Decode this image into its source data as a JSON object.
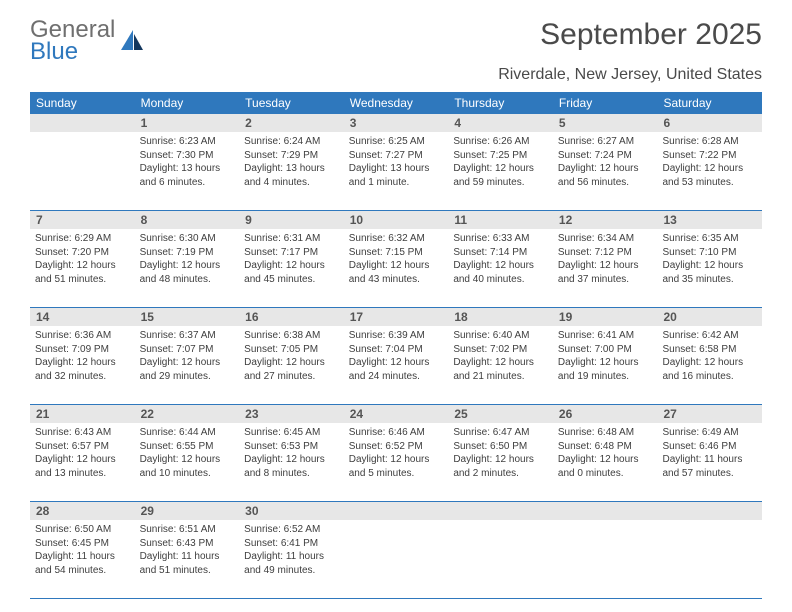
{
  "brand": {
    "part1": "General",
    "part2": "Blue"
  },
  "title": "September 2025",
  "subtitle": "Riverdale, New Jersey, United States",
  "colors": {
    "header_bg": "#2f78bd",
    "daynum_bg": "#e7e7e7",
    "text_main": "#4a4a4a",
    "text_body": "#3e3e3e"
  },
  "day_names": [
    "Sunday",
    "Monday",
    "Tuesday",
    "Wednesday",
    "Thursday",
    "Friday",
    "Saturday"
  ],
  "weeks": [
    [
      {
        "n": "",
        "sunrise": "",
        "sunset": "",
        "daylight": ""
      },
      {
        "n": "1",
        "sunrise": "Sunrise: 6:23 AM",
        "sunset": "Sunset: 7:30 PM",
        "daylight": "Daylight: 13 hours and 6 minutes."
      },
      {
        "n": "2",
        "sunrise": "Sunrise: 6:24 AM",
        "sunset": "Sunset: 7:29 PM",
        "daylight": "Daylight: 13 hours and 4 minutes."
      },
      {
        "n": "3",
        "sunrise": "Sunrise: 6:25 AM",
        "sunset": "Sunset: 7:27 PM",
        "daylight": "Daylight: 13 hours and 1 minute."
      },
      {
        "n": "4",
        "sunrise": "Sunrise: 6:26 AM",
        "sunset": "Sunset: 7:25 PM",
        "daylight": "Daylight: 12 hours and 59 minutes."
      },
      {
        "n": "5",
        "sunrise": "Sunrise: 6:27 AM",
        "sunset": "Sunset: 7:24 PM",
        "daylight": "Daylight: 12 hours and 56 minutes."
      },
      {
        "n": "6",
        "sunrise": "Sunrise: 6:28 AM",
        "sunset": "Sunset: 7:22 PM",
        "daylight": "Daylight: 12 hours and 53 minutes."
      }
    ],
    [
      {
        "n": "7",
        "sunrise": "Sunrise: 6:29 AM",
        "sunset": "Sunset: 7:20 PM",
        "daylight": "Daylight: 12 hours and 51 minutes."
      },
      {
        "n": "8",
        "sunrise": "Sunrise: 6:30 AM",
        "sunset": "Sunset: 7:19 PM",
        "daylight": "Daylight: 12 hours and 48 minutes."
      },
      {
        "n": "9",
        "sunrise": "Sunrise: 6:31 AM",
        "sunset": "Sunset: 7:17 PM",
        "daylight": "Daylight: 12 hours and 45 minutes."
      },
      {
        "n": "10",
        "sunrise": "Sunrise: 6:32 AM",
        "sunset": "Sunset: 7:15 PM",
        "daylight": "Daylight: 12 hours and 43 minutes."
      },
      {
        "n": "11",
        "sunrise": "Sunrise: 6:33 AM",
        "sunset": "Sunset: 7:14 PM",
        "daylight": "Daylight: 12 hours and 40 minutes."
      },
      {
        "n": "12",
        "sunrise": "Sunrise: 6:34 AM",
        "sunset": "Sunset: 7:12 PM",
        "daylight": "Daylight: 12 hours and 37 minutes."
      },
      {
        "n": "13",
        "sunrise": "Sunrise: 6:35 AM",
        "sunset": "Sunset: 7:10 PM",
        "daylight": "Daylight: 12 hours and 35 minutes."
      }
    ],
    [
      {
        "n": "14",
        "sunrise": "Sunrise: 6:36 AM",
        "sunset": "Sunset: 7:09 PM",
        "daylight": "Daylight: 12 hours and 32 minutes."
      },
      {
        "n": "15",
        "sunrise": "Sunrise: 6:37 AM",
        "sunset": "Sunset: 7:07 PM",
        "daylight": "Daylight: 12 hours and 29 minutes."
      },
      {
        "n": "16",
        "sunrise": "Sunrise: 6:38 AM",
        "sunset": "Sunset: 7:05 PM",
        "daylight": "Daylight: 12 hours and 27 minutes."
      },
      {
        "n": "17",
        "sunrise": "Sunrise: 6:39 AM",
        "sunset": "Sunset: 7:04 PM",
        "daylight": "Daylight: 12 hours and 24 minutes."
      },
      {
        "n": "18",
        "sunrise": "Sunrise: 6:40 AM",
        "sunset": "Sunset: 7:02 PM",
        "daylight": "Daylight: 12 hours and 21 minutes."
      },
      {
        "n": "19",
        "sunrise": "Sunrise: 6:41 AM",
        "sunset": "Sunset: 7:00 PM",
        "daylight": "Daylight: 12 hours and 19 minutes."
      },
      {
        "n": "20",
        "sunrise": "Sunrise: 6:42 AM",
        "sunset": "Sunset: 6:58 PM",
        "daylight": "Daylight: 12 hours and 16 minutes."
      }
    ],
    [
      {
        "n": "21",
        "sunrise": "Sunrise: 6:43 AM",
        "sunset": "Sunset: 6:57 PM",
        "daylight": "Daylight: 12 hours and 13 minutes."
      },
      {
        "n": "22",
        "sunrise": "Sunrise: 6:44 AM",
        "sunset": "Sunset: 6:55 PM",
        "daylight": "Daylight: 12 hours and 10 minutes."
      },
      {
        "n": "23",
        "sunrise": "Sunrise: 6:45 AM",
        "sunset": "Sunset: 6:53 PM",
        "daylight": "Daylight: 12 hours and 8 minutes."
      },
      {
        "n": "24",
        "sunrise": "Sunrise: 6:46 AM",
        "sunset": "Sunset: 6:52 PM",
        "daylight": "Daylight: 12 hours and 5 minutes."
      },
      {
        "n": "25",
        "sunrise": "Sunrise: 6:47 AM",
        "sunset": "Sunset: 6:50 PM",
        "daylight": "Daylight: 12 hours and 2 minutes."
      },
      {
        "n": "26",
        "sunrise": "Sunrise: 6:48 AM",
        "sunset": "Sunset: 6:48 PM",
        "daylight": "Daylight: 12 hours and 0 minutes."
      },
      {
        "n": "27",
        "sunrise": "Sunrise: 6:49 AM",
        "sunset": "Sunset: 6:46 PM",
        "daylight": "Daylight: 11 hours and 57 minutes."
      }
    ],
    [
      {
        "n": "28",
        "sunrise": "Sunrise: 6:50 AM",
        "sunset": "Sunset: 6:45 PM",
        "daylight": "Daylight: 11 hours and 54 minutes."
      },
      {
        "n": "29",
        "sunrise": "Sunrise: 6:51 AM",
        "sunset": "Sunset: 6:43 PM",
        "daylight": "Daylight: 11 hours and 51 minutes."
      },
      {
        "n": "30",
        "sunrise": "Sunrise: 6:52 AM",
        "sunset": "Sunset: 6:41 PM",
        "daylight": "Daylight: 11 hours and 49 minutes."
      },
      {
        "n": "",
        "sunrise": "",
        "sunset": "",
        "daylight": ""
      },
      {
        "n": "",
        "sunrise": "",
        "sunset": "",
        "daylight": ""
      },
      {
        "n": "",
        "sunrise": "",
        "sunset": "",
        "daylight": ""
      },
      {
        "n": "",
        "sunrise": "",
        "sunset": "",
        "daylight": ""
      }
    ]
  ]
}
